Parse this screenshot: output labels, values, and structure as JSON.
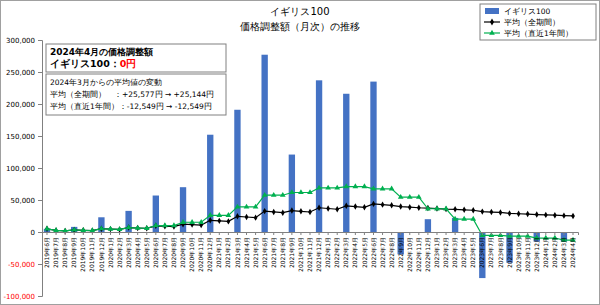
{
  "chart_data": {
    "type": "bar",
    "title": "イギリス100",
    "subtitle": "価格調整額（月次）の推移",
    "categories": [
      "2019年6月",
      "2019年7月",
      "2019年8月",
      "2019年9月",
      "2019年10月",
      "2019年11月",
      "2019年12月",
      "2020年1月",
      "2020年2月",
      "2020年3月",
      "2020年4月",
      "2020年5月",
      "2020年6月",
      "2020年7月",
      "2020年8月",
      "2020年9月",
      "2020年10月",
      "2020年11月",
      "2020年12月",
      "2021年1月",
      "2021年2月",
      "2021年3月",
      "2021年4月",
      "2021年5月",
      "2021年6月",
      "2021年7月",
      "2021年8月",
      "2021年9月",
      "2021年10月",
      "2021年11月",
      "2021年12月",
      "2022年1月",
      "2022年2月",
      "2022年3月",
      "2022年4月",
      "2022年5月",
      "2022年6月",
      "2022年7月",
      "2022年8月",
      "2022年9月",
      "2022年10月",
      "2022年11月",
      "2022年12月",
      "2023年1月",
      "2023年2月",
      "2023年3月",
      "2023年4月",
      "2023年5月",
      "2023年6月",
      "2023年7月",
      "2023年8月",
      "2023年9月",
      "2023年10月",
      "2023年11月",
      "2023年12月",
      "2024年1月",
      "2024年2月",
      "2024年3月",
      "2024年4月"
    ],
    "series": [
      {
        "name": "イギリス100",
        "type": "bar",
        "color": "#4472c4",
        "values": [
          5000,
          0,
          0,
          8000,
          0,
          0,
          23000,
          0,
          0,
          33000,
          0,
          0,
          57000,
          0,
          0,
          70000,
          0,
          0,
          152000,
          0,
          0,
          191000,
          0,
          0,
          277000,
          0,
          0,
          121000,
          0,
          0,
          237000,
          0,
          0,
          216000,
          0,
          0,
          235000,
          0,
          0,
          -35000,
          0,
          0,
          20000,
          0,
          0,
          22000,
          0,
          0,
          -72000,
          0,
          0,
          -48000,
          0,
          0,
          -15000,
          0,
          0,
          -15000,
          0
        ]
      },
      {
        "name": "平均（全期間）",
        "type": "line",
        "color": "#000000",
        "marker": "diamond",
        "values": [
          5000,
          2500,
          1667,
          3250,
          2600,
          2167,
          5143,
          4500,
          4000,
          6900,
          6273,
          5750,
          9692,
          9000,
          8400,
          12250,
          11529,
          10889,
          18316,
          17400,
          16571,
          24500,
          23435,
          22458,
          32640,
          31385,
          30222,
          33464,
          32310,
          31233,
          37871,
          36688,
          35576,
          40882,
          39714,
          38611,
          43919,
          42763,
          41667,
          39750,
          38780,
          37857,
          37442,
          36591,
          35778,
          35478,
          34723,
          34000,
          31837,
          31200,
          30588,
          29077,
          28528,
          28000,
          27218,
          26732,
          26263,
          25577,
          25144
        ]
      },
      {
        "name": "平均（直近1年間）",
        "type": "line",
        "color": "#00b050",
        "marker": "triangle",
        "values": [
          5000,
          2500,
          1667,
          3250,
          2600,
          2167,
          5143,
          4500,
          4000,
          6900,
          6273,
          5750,
          10083,
          10083,
          10083,
          15250,
          15250,
          15250,
          26000,
          26000,
          26000,
          39167,
          39167,
          39167,
          57500,
          57500,
          57500,
          61750,
          61750,
          61750,
          68833,
          68833,
          68833,
          70917,
          70917,
          70917,
          67417,
          67417,
          67417,
          54417,
          54417,
          54417,
          36333,
          36333,
          36333,
          20167,
          20167,
          20167,
          -5417,
          -5417,
          -5417,
          -6500,
          -6500,
          -6500,
          -9417,
          -9417,
          -9417,
          -12549,
          -12549
        ]
      }
    ],
    "ylim": [
      -100000,
      300000
    ],
    "yticks": [
      {
        "value": -100000,
        "label": "-100,000"
      },
      {
        "value": -50000,
        "label": "-50,000"
      },
      0,
      {
        "value": 50000,
        "label": "50,000"
      },
      {
        "value": 100000,
        "label": "100,000"
      },
      {
        "value": 150000,
        "label": "150,000"
      },
      {
        "value": 200000,
        "label": "200,000"
      },
      {
        "value": 250000,
        "label": "250,000"
      },
      {
        "value": 300000,
        "label": "300,000"
      }
    ],
    "grid": false,
    "legend": "top-right",
    "annotations": [
      {
        "text": "2024年4月の価格調整額"
      },
      {
        "text": "イギリス100："
      },
      {
        "text": "0円",
        "color": "#ff0000"
      },
      {
        "text": "2024年3月からの平均値の変動"
      },
      {
        "text": "平均（全期間）　：+25,577円 → +25,144円"
      },
      {
        "text": "平均（直近1年間）：-12,549円 → -12,549円"
      }
    ]
  }
}
